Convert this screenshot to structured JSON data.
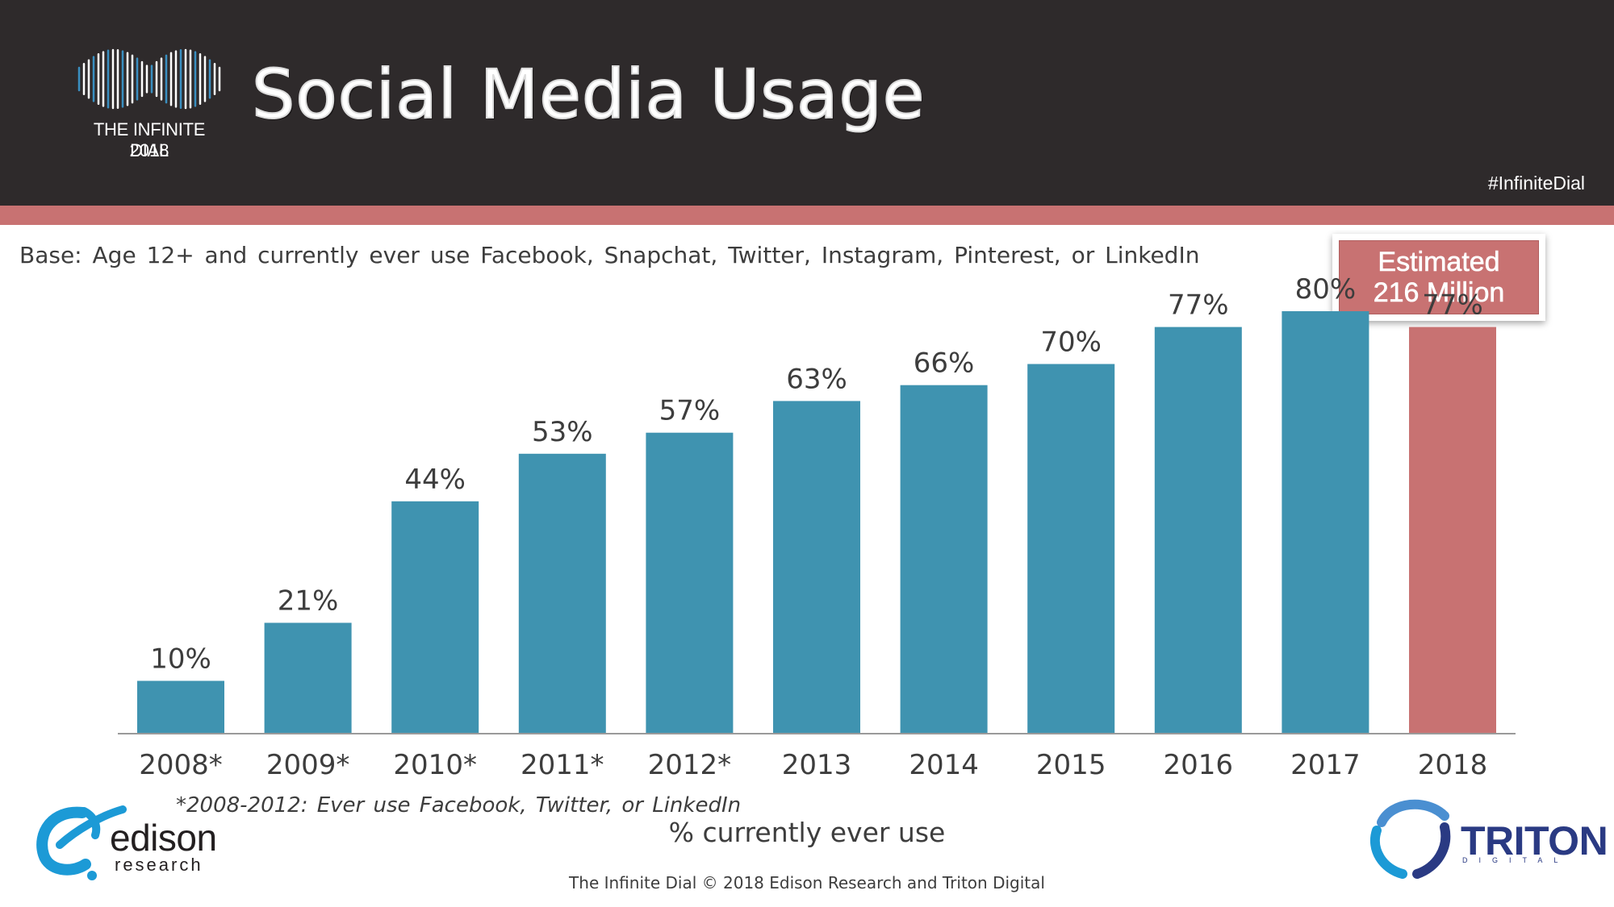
{
  "header": {
    "logo_name": "THE INFINITE DIAL",
    "logo_year": "2018",
    "title": "Social Media Usage",
    "hashtag": "#InfiniteDial"
  },
  "base_note": "Base: Age 12+ and currently ever use Facebook, Snapchat, Twitter, Instagram, Pinterest, or LinkedIn",
  "estimate": {
    "line1": "Estimated",
    "line2": "216 Million"
  },
  "colors": {
    "header_bg": "#2e2a2b",
    "accent_red": "#c87272",
    "bar_blue": "#3f93b0",
    "text_gray": "#3d3d3d"
  },
  "chart_data": {
    "type": "bar",
    "title": "Social Media Usage",
    "categories": [
      "2008*",
      "2009*",
      "2010*",
      "2011*",
      "2012*",
      "2013",
      "2014",
      "2015",
      "2016",
      "2017",
      "2018"
    ],
    "values": [
      10,
      21,
      44,
      53,
      57,
      63,
      66,
      70,
      77,
      80,
      77
    ],
    "value_labels": [
      "10%",
      "21%",
      "44%",
      "53%",
      "57%",
      "63%",
      "66%",
      "70%",
      "77%",
      "80%",
      "77%"
    ],
    "highlight_index": 10,
    "xlabel": "% currently ever use",
    "ylabel": "",
    "ylim": [
      0,
      100
    ],
    "grid": false
  },
  "footnote": "*2008-2012: Ever use Facebook, Twitter, or LinkedIn",
  "copyright": "The Infinite Dial   © 2018 Edison Research and Triton Digital",
  "logos": {
    "edison_word": "edison",
    "edison_sub": "research",
    "triton_word": "TRITON",
    "triton_sub": "DIGITAL"
  }
}
